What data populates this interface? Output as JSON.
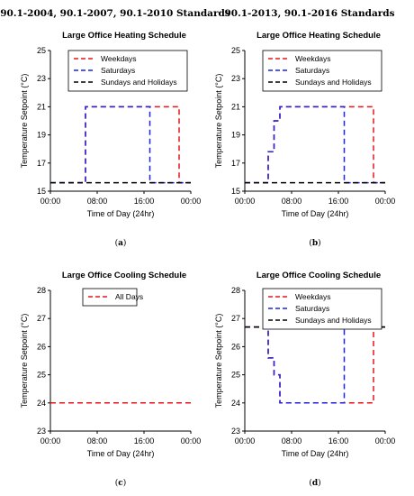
{
  "headers": [
    "90.1-2004, 90.1-2007, 90.1-2010 Standards",
    "90.1-2013, 90.1-2016 Standards"
  ],
  "colors": {
    "weekdays": "#e8151b",
    "saturdays": "#1f22e0",
    "sundays": "#000000",
    "all_days": "#e8151b"
  },
  "chart_data": [
    {
      "type": "line",
      "title": "Large Office Heating Schedule",
      "xlabel": "Time of Day (24hr)",
      "ylabel": "Temperature Setpoint (°C)",
      "subtitle": {
        "open": "(",
        "letter": "a",
        "close": ")"
      },
      "xlim": [
        0,
        24
      ],
      "ylim": [
        15,
        25
      ],
      "x_ticks": [
        0,
        8,
        16,
        24
      ],
      "x_tick_labels": [
        "00:00",
        "08:00",
        "16:00",
        "00:00"
      ],
      "y_ticks": [
        15,
        17,
        19,
        21,
        23,
        25
      ],
      "legend_position": "top-right",
      "series": [
        {
          "name": "Weekdays",
          "color_key": "weekdays",
          "x": [
            0,
            6,
            6,
            22,
            22,
            24
          ],
          "y": [
            15.6,
            15.6,
            21,
            21,
            15.6,
            15.6
          ]
        },
        {
          "name": "Saturdays",
          "color_key": "saturdays",
          "x": [
            0,
            6,
            6,
            17,
            17,
            24
          ],
          "y": [
            15.6,
            15.6,
            21,
            21,
            15.6,
            15.6
          ]
        },
        {
          "name": "Sundays and Holidays",
          "color_key": "sundays",
          "x": [
            0,
            24
          ],
          "y": [
            15.6,
            15.6
          ]
        }
      ]
    },
    {
      "type": "line",
      "title": "Large Office Heating Schedule",
      "xlabel": "Time of Day (24hr)",
      "ylabel": "Temperature Setpoint (°C)",
      "subtitle": {
        "open": "(",
        "letter": "b",
        "close": ")"
      },
      "xlim": [
        0,
        24
      ],
      "ylim": [
        15,
        25
      ],
      "x_ticks": [
        0,
        8,
        16,
        24
      ],
      "x_tick_labels": [
        "00:00",
        "08:00",
        "16:00",
        "00:00"
      ],
      "y_ticks": [
        15,
        17,
        19,
        21,
        23,
        25
      ],
      "legend_position": "top-right",
      "series": [
        {
          "name": "Weekdays",
          "color_key": "weekdays",
          "x": [
            0,
            4,
            4,
            5,
            5,
            6,
            6,
            22,
            22,
            24
          ],
          "y": [
            15.6,
            15.6,
            17.8,
            17.8,
            20,
            20,
            21,
            21,
            15.6,
            15.6
          ]
        },
        {
          "name": "Saturdays",
          "color_key": "saturdays",
          "x": [
            0,
            4,
            4,
            5,
            5,
            6,
            6,
            17,
            17,
            24
          ],
          "y": [
            15.6,
            15.6,
            17.8,
            17.8,
            20,
            20,
            21,
            21,
            15.6,
            15.6
          ]
        },
        {
          "name": "Sundays and Holidays",
          "color_key": "sundays",
          "x": [
            0,
            24
          ],
          "y": [
            15.6,
            15.6
          ]
        }
      ]
    },
    {
      "type": "line",
      "title": "Large Office Cooling Schedule",
      "xlabel": "Time of Day (24hr)",
      "ylabel": "Temperature Setpoint (°C)",
      "subtitle": {
        "open": "(",
        "letter": "c",
        "close": ")"
      },
      "xlim": [
        0,
        24
      ],
      "ylim": [
        23,
        28
      ],
      "x_ticks": [
        0,
        8,
        16,
        24
      ],
      "x_tick_labels": [
        "00:00",
        "08:00",
        "16:00",
        "00:00"
      ],
      "y_ticks": [
        23,
        24,
        25,
        26,
        27,
        28
      ],
      "legend_position": "top-center",
      "series": [
        {
          "name": "All Days",
          "color_key": "all_days",
          "x": [
            0,
            24
          ],
          "y": [
            24,
            24
          ]
        }
      ]
    },
    {
      "type": "line",
      "title": "Large Office Cooling Schedule",
      "xlabel": "Time of Day (24hr)",
      "ylabel": "Temperature Setpoint (°C)",
      "subtitle": {
        "open": "(",
        "letter": "d",
        "close": ")"
      },
      "xlim": [
        0,
        24
      ],
      "ylim": [
        23,
        28
      ],
      "x_ticks": [
        0,
        8,
        16,
        24
      ],
      "x_tick_labels": [
        "00:00",
        "08:00",
        "16:00",
        "00:00"
      ],
      "y_ticks": [
        23,
        24,
        25,
        26,
        27,
        28
      ],
      "legend_position": "top-right",
      "series": [
        {
          "name": "Weekdays",
          "color_key": "weekdays",
          "x": [
            0,
            4,
            4,
            5,
            5,
            6,
            6,
            22,
            22,
            24
          ],
          "y": [
            26.7,
            26.7,
            25.6,
            25.6,
            25,
            25,
            24,
            24,
            26.7,
            26.7
          ]
        },
        {
          "name": "Saturdays",
          "color_key": "saturdays",
          "x": [
            0,
            4,
            4,
            5,
            5,
            6,
            6,
            17,
            17,
            24
          ],
          "y": [
            26.7,
            26.7,
            25.6,
            25.6,
            25,
            25,
            24,
            24,
            26.7,
            26.7
          ]
        },
        {
          "name": "Sundays and Holidays",
          "color_key": "sundays",
          "x": [
            0,
            24
          ],
          "y": [
            26.7,
            26.7
          ]
        }
      ]
    }
  ]
}
